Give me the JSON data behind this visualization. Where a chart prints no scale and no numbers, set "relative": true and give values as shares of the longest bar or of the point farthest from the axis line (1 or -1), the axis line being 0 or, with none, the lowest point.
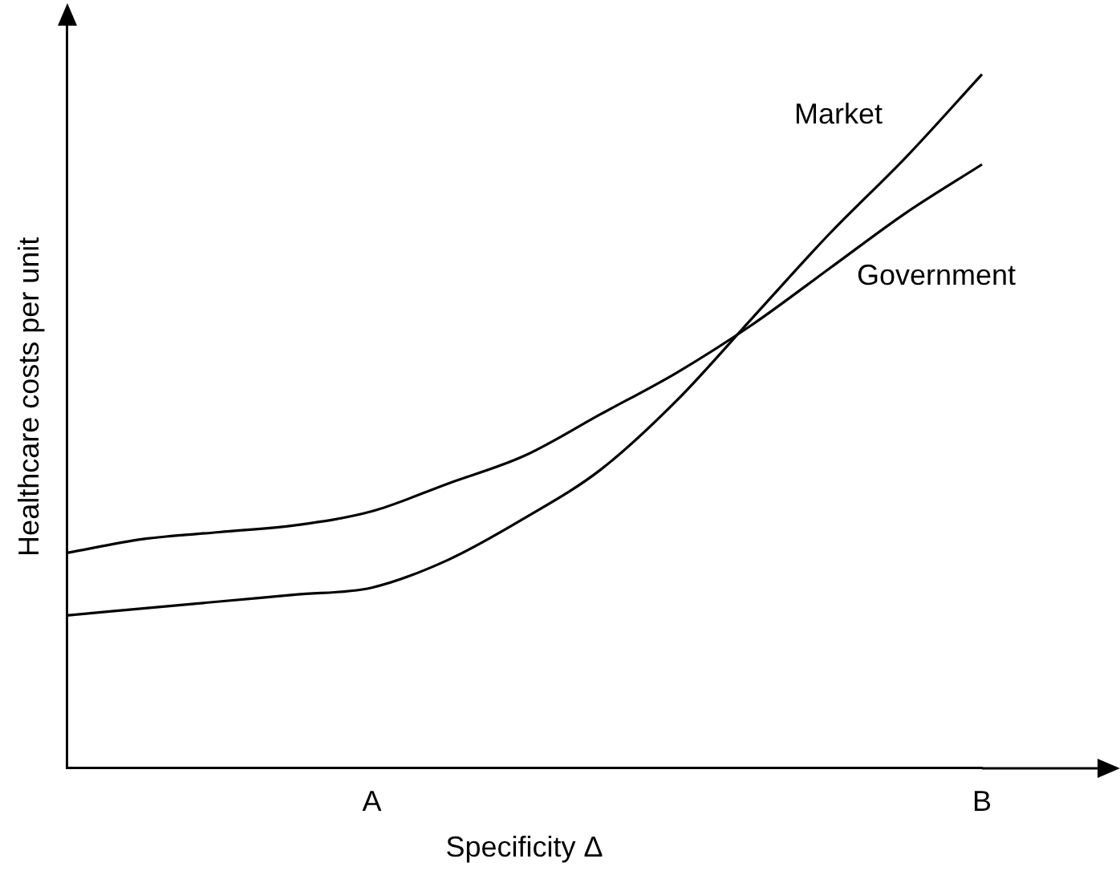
{
  "chart_data": {
    "type": "line",
    "relative": true,
    "xlabel": "Specificity Δ",
    "ylabel": "Healthcare costs per unit",
    "categories": [
      null,
      null,
      null,
      null,
      "A",
      null,
      null,
      null,
      null,
      null,
      null,
      null,
      "B"
    ],
    "series": [
      {
        "name": "Market",
        "color": "#000000",
        "values": [
          0.22,
          0.23,
          0.24,
          0.25,
          0.26,
          0.3,
          0.36,
          0.43,
          0.53,
          0.65,
          0.77,
          0.88,
          1
        ]
      },
      {
        "name": "Government",
        "color": "#000000",
        "values": [
          0.31,
          0.33,
          0.34,
          0.35,
          0.37,
          0.41,
          0.45,
          0.51,
          0.57,
          0.64,
          0.72,
          0.8,
          0.87
        ]
      }
    ],
    "legend": false,
    "grid": false,
    "tick_labels": "x",
    "marker": "none",
    "line_style": "solid"
  }
}
